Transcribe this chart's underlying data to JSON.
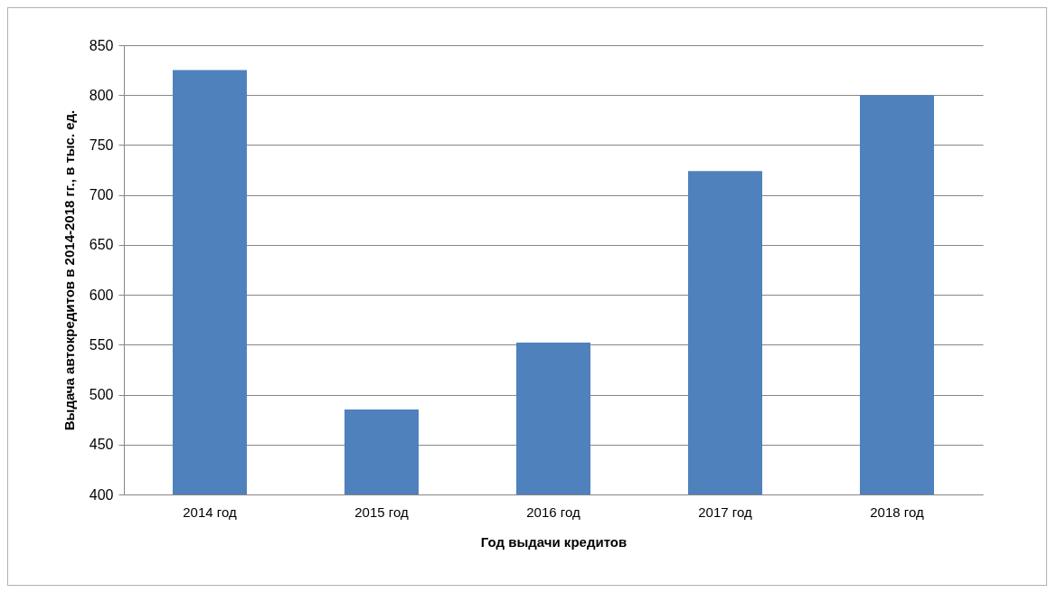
{
  "chart_data": {
    "type": "bar",
    "xlabel": "Год выдачи кредитов",
    "ylabel": "Выдача автокредитов  в 2014-2018 гг., в тыс. ед.",
    "categories": [
      "2014 год",
      "2015 год",
      "2016 год",
      "2017 год",
      "2018 год"
    ],
    "values": [
      825,
      485,
      552,
      724,
      800
    ],
    "color": "#4f81bd",
    "ylim": [
      400,
      850
    ],
    "yticks": [
      400,
      450,
      500,
      550,
      600,
      650,
      700,
      750,
      800,
      850
    ],
    "grid": "y"
  }
}
